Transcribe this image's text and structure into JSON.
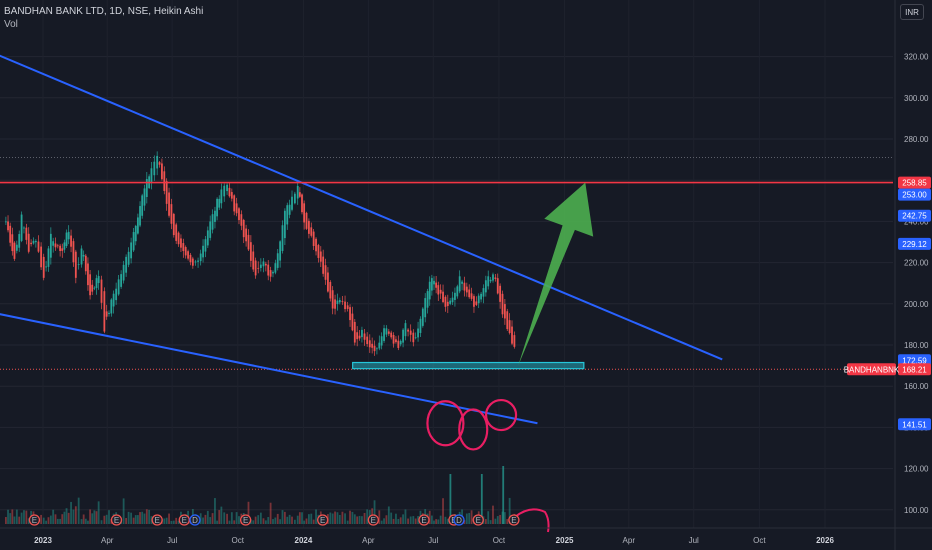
{
  "legend": {
    "symbol": "BANDHAN BANK LTD, 1D, NSE, Heikin Ashi",
    "volume_label": "Vol"
  },
  "currency_button": "INR",
  "colors": {
    "background": "#161a25",
    "up": "#26a69a",
    "down": "#ef5350",
    "trendline": "#2962ff",
    "resistance": "#f23645",
    "arrow": "#4caf50",
    "support_box": "#26c6da",
    "annotation": "#e91e63"
  },
  "chart_data": {
    "type": "candlestick",
    "series_style": "Heikin Ashi",
    "symbol": "BANDHAN BANK LTD",
    "interval": "1D",
    "exchange": "NSE",
    "y_axis": {
      "unit": "INR",
      "range": [
        96,
        335
      ],
      "ticks": [
        100.0,
        120.0,
        140.0,
        160.0,
        180.0,
        200.0,
        220.0,
        240.0,
        260.0,
        280.0,
        300.0,
        320.0
      ]
    },
    "x_axis": {
      "ticks": [
        {
          "label": "2023",
          "date": "2023-01-01",
          "bold": true
        },
        {
          "label": "Apr",
          "date": "2023-04-01"
        },
        {
          "label": "Jul",
          "date": "2023-07-01"
        },
        {
          "label": "Oct",
          "date": "2023-10-01"
        },
        {
          "label": "2024",
          "date": "2024-01-01",
          "bold": true
        },
        {
          "label": "Apr",
          "date": "2024-04-01"
        },
        {
          "label": "Jul",
          "date": "2024-07-01"
        },
        {
          "label": "Oct",
          "date": "2024-10-01"
        },
        {
          "label": "2025",
          "date": "2025-01-01",
          "bold": true
        },
        {
          "label": "Apr",
          "date": "2025-04-01"
        },
        {
          "label": "Jul",
          "date": "2025-07-01"
        },
        {
          "label": "Oct",
          "date": "2025-10-01"
        },
        {
          "label": "2026",
          "date": "2026-01-01",
          "bold": true
        }
      ]
    },
    "price_path": [
      [
        "2022-11-10",
        240
      ],
      [
        "2022-11-22",
        222
      ],
      [
        "2022-12-02",
        242
      ],
      [
        "2022-12-12",
        226
      ],
      [
        "2022-12-22",
        232
      ],
      [
        "2023-01-02",
        212
      ],
      [
        "2023-01-12",
        234
      ],
      [
        "2023-01-25",
        224
      ],
      [
        "2023-02-06",
        236
      ],
      [
        "2023-02-16",
        212
      ],
      [
        "2023-02-24",
        228
      ],
      [
        "2023-03-08",
        204
      ],
      [
        "2023-03-20",
        214
      ],
      [
        "2023-03-28",
        188
      ],
      [
        "2023-04-10",
        205
      ],
      [
        "2023-04-24",
        218
      ],
      [
        "2023-05-08",
        235
      ],
      [
        "2023-05-20",
        252
      ],
      [
        "2023-06-02",
        266
      ],
      [
        "2023-06-10",
        272
      ],
      [
        "2023-06-20",
        255
      ],
      [
        "2023-06-30",
        238
      ],
      [
        "2023-07-10",
        228
      ],
      [
        "2023-07-20",
        222
      ],
      [
        "2023-07-30",
        218
      ],
      [
        "2023-08-10",
        225
      ],
      [
        "2023-08-20",
        236
      ],
      [
        "2023-08-30",
        246
      ],
      [
        "2023-09-08",
        256
      ],
      [
        "2023-09-16",
        258
      ],
      [
        "2023-09-26",
        245
      ],
      [
        "2023-10-06",
        238
      ],
      [
        "2023-10-16",
        225
      ],
      [
        "2023-10-26",
        215
      ],
      [
        "2023-11-06",
        220
      ],
      [
        "2023-11-16",
        212
      ],
      [
        "2023-11-26",
        226
      ],
      [
        "2023-12-06",
        244
      ],
      [
        "2023-12-16",
        252
      ],
      [
        "2023-12-24",
        258
      ],
      [
        "2024-01-02",
        240
      ],
      [
        "2024-01-12",
        232
      ],
      [
        "2024-01-22",
        224
      ],
      [
        "2024-02-01",
        212
      ],
      [
        "2024-02-11",
        198
      ],
      [
        "2024-02-21",
        202
      ],
      [
        "2024-03-03",
        196
      ],
      [
        "2024-03-13",
        182
      ],
      [
        "2024-03-23",
        186
      ],
      [
        "2024-04-03",
        180
      ],
      [
        "2024-04-13",
        178
      ],
      [
        "2024-04-23",
        188
      ],
      [
        "2024-05-03",
        184
      ],
      [
        "2024-05-13",
        178
      ],
      [
        "2024-05-23",
        190
      ],
      [
        "2024-06-03",
        180
      ],
      [
        "2024-06-13",
        192
      ],
      [
        "2024-06-23",
        206
      ],
      [
        "2024-06-29",
        212
      ],
      [
        "2024-07-08",
        206
      ],
      [
        "2024-07-18",
        198
      ],
      [
        "2024-07-28",
        202
      ],
      [
        "2024-08-07",
        212
      ],
      [
        "2024-08-17",
        206
      ],
      [
        "2024-08-27",
        198
      ],
      [
        "2024-09-06",
        206
      ],
      [
        "2024-09-16",
        214
      ],
      [
        "2024-09-26",
        212
      ],
      [
        "2024-10-06",
        196
      ],
      [
        "2024-10-16",
        185
      ],
      [
        "2024-10-26",
        174
      ]
    ],
    "volume": {
      "range": [
        0,
        75
      ],
      "spikes": [
        {
          "date": "2024-07-25",
          "value": 50
        },
        {
          "date": "2024-09-07",
          "value": 50
        },
        {
          "date": "2024-10-07",
          "value": 58
        }
      ]
    },
    "earnings_markers": [
      {
        "date": "2022-12-20",
        "label": "E"
      },
      {
        "date": "2023-04-14",
        "label": "E"
      },
      {
        "date": "2023-06-10",
        "label": "E"
      },
      {
        "date": "2023-07-18",
        "label": "E"
      },
      {
        "date": "2023-08-02",
        "label": "D"
      },
      {
        "date": "2023-10-12",
        "label": "E"
      },
      {
        "date": "2024-01-28",
        "label": "E"
      },
      {
        "date": "2024-04-08",
        "label": "E"
      },
      {
        "date": "2024-06-18",
        "label": "E"
      },
      {
        "date": "2024-07-30",
        "label": "E"
      },
      {
        "date": "2024-08-06",
        "label": "D"
      },
      {
        "date": "2024-09-02",
        "label": "E"
      },
      {
        "date": "2024-10-22",
        "label": "E"
      }
    ],
    "annotations": {
      "upper_trendline": [
        [
          "2022-10-01",
          325
        ],
        [
          "2025-08-10",
          173
        ]
      ],
      "lower_trendline": [
        [
          "2022-11-01",
          195
        ],
        [
          "2024-11-24",
          142
        ]
      ],
      "resistance_level": 258.85,
      "support_zone": {
        "from": "2024-03-10",
        "to": "2025-01-28",
        "low": 168.5,
        "high": 171.5
      },
      "target_arrow": [
        [
          "2024-10-28",
          170
        ],
        [
          "2025-01-30",
          258.85
        ]
      ]
    },
    "price_labels": [
      {
        "value": 258.85,
        "text": "258.85",
        "color": "#f23645"
      },
      {
        "value": 253.0,
        "text": "253.00",
        "color": "#2962ff"
      },
      {
        "value": 242.75,
        "text": "242.75",
        "color": "#2962ff"
      },
      {
        "value": 229.12,
        "text": "229.12",
        "color": "#2962ff"
      },
      {
        "value": 172.59,
        "text": "172.59",
        "color": "#2962ff"
      },
      {
        "value": 168.21,
        "text": "168.21",
        "color": "#f23645",
        "ticker": "BANDHANBNK"
      },
      {
        "value": 141.51,
        "text": "141.51",
        "color": "#2962ff"
      }
    ]
  }
}
